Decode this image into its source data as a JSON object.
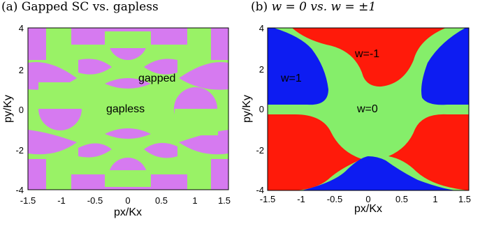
{
  "panels": [
    {
      "caption": "(a) Gapped SC vs. gapless",
      "chart_data": {
        "type": "heatmap",
        "xlabel": "px/Kx",
        "ylabel": "py/Ky",
        "xlim": [
          -1.5,
          1.5
        ],
        "ylim": [
          -4,
          4
        ],
        "xticks": [
          "-1.5",
          "-1",
          "-0.5",
          "0",
          "0.5",
          "1",
          "1.5"
        ],
        "xtick_values": [
          -1.5,
          -1,
          -0.5,
          0,
          0.5,
          1,
          1.5
        ],
        "yticks": [
          "-4",
          "-2",
          "0",
          "2",
          "4"
        ],
        "ytick_values": [
          -4,
          -2,
          0,
          2,
          4
        ],
        "regions": [
          {
            "label": "gapless",
            "color": "#99f266"
          },
          {
            "label": "gapped",
            "color": "#d67af0"
          }
        ],
        "annotations": [
          {
            "text": "gapped",
            "x": 0.5,
            "y": 1.8
          },
          {
            "text": "gapless",
            "x": -0.4,
            "y": 0.1
          }
        ]
      }
    },
    {
      "caption_prefix": "(b)",
      "caption_math": "w = 0 vs. w = ±1",
      "chart_data": {
        "type": "heatmap",
        "xlabel": "px/Kx",
        "ylabel": "py/Ky",
        "xlim": [
          -1.5,
          1.5
        ],
        "ylim": [
          -4,
          4
        ],
        "xticks": [
          "-1.5",
          "-1",
          "-0.5",
          "0",
          "0.5",
          "1",
          "1.5"
        ],
        "xtick_values": [
          -1.5,
          -1,
          -0.5,
          0,
          0.5,
          1,
          1.5
        ],
        "yticks": [
          "-4",
          "-2",
          "0",
          "2",
          "4"
        ],
        "ytick_values": [
          -4,
          -2,
          0,
          2,
          4
        ],
        "regions": [
          {
            "label": "w=0",
            "color": "#85ee6a"
          },
          {
            "label": "w=-1",
            "color": "#ff1a0a"
          },
          {
            "label": "w=1",
            "color": "#0d1cf2"
          }
        ],
        "annotations": [
          {
            "text": "w=-1",
            "x": 0.1,
            "y": 3.0
          },
          {
            "text": "w=1",
            "x": -1.25,
            "y": 1.8
          },
          {
            "text": "w=0",
            "x": 0.1,
            "y": 0.1
          }
        ]
      }
    }
  ]
}
